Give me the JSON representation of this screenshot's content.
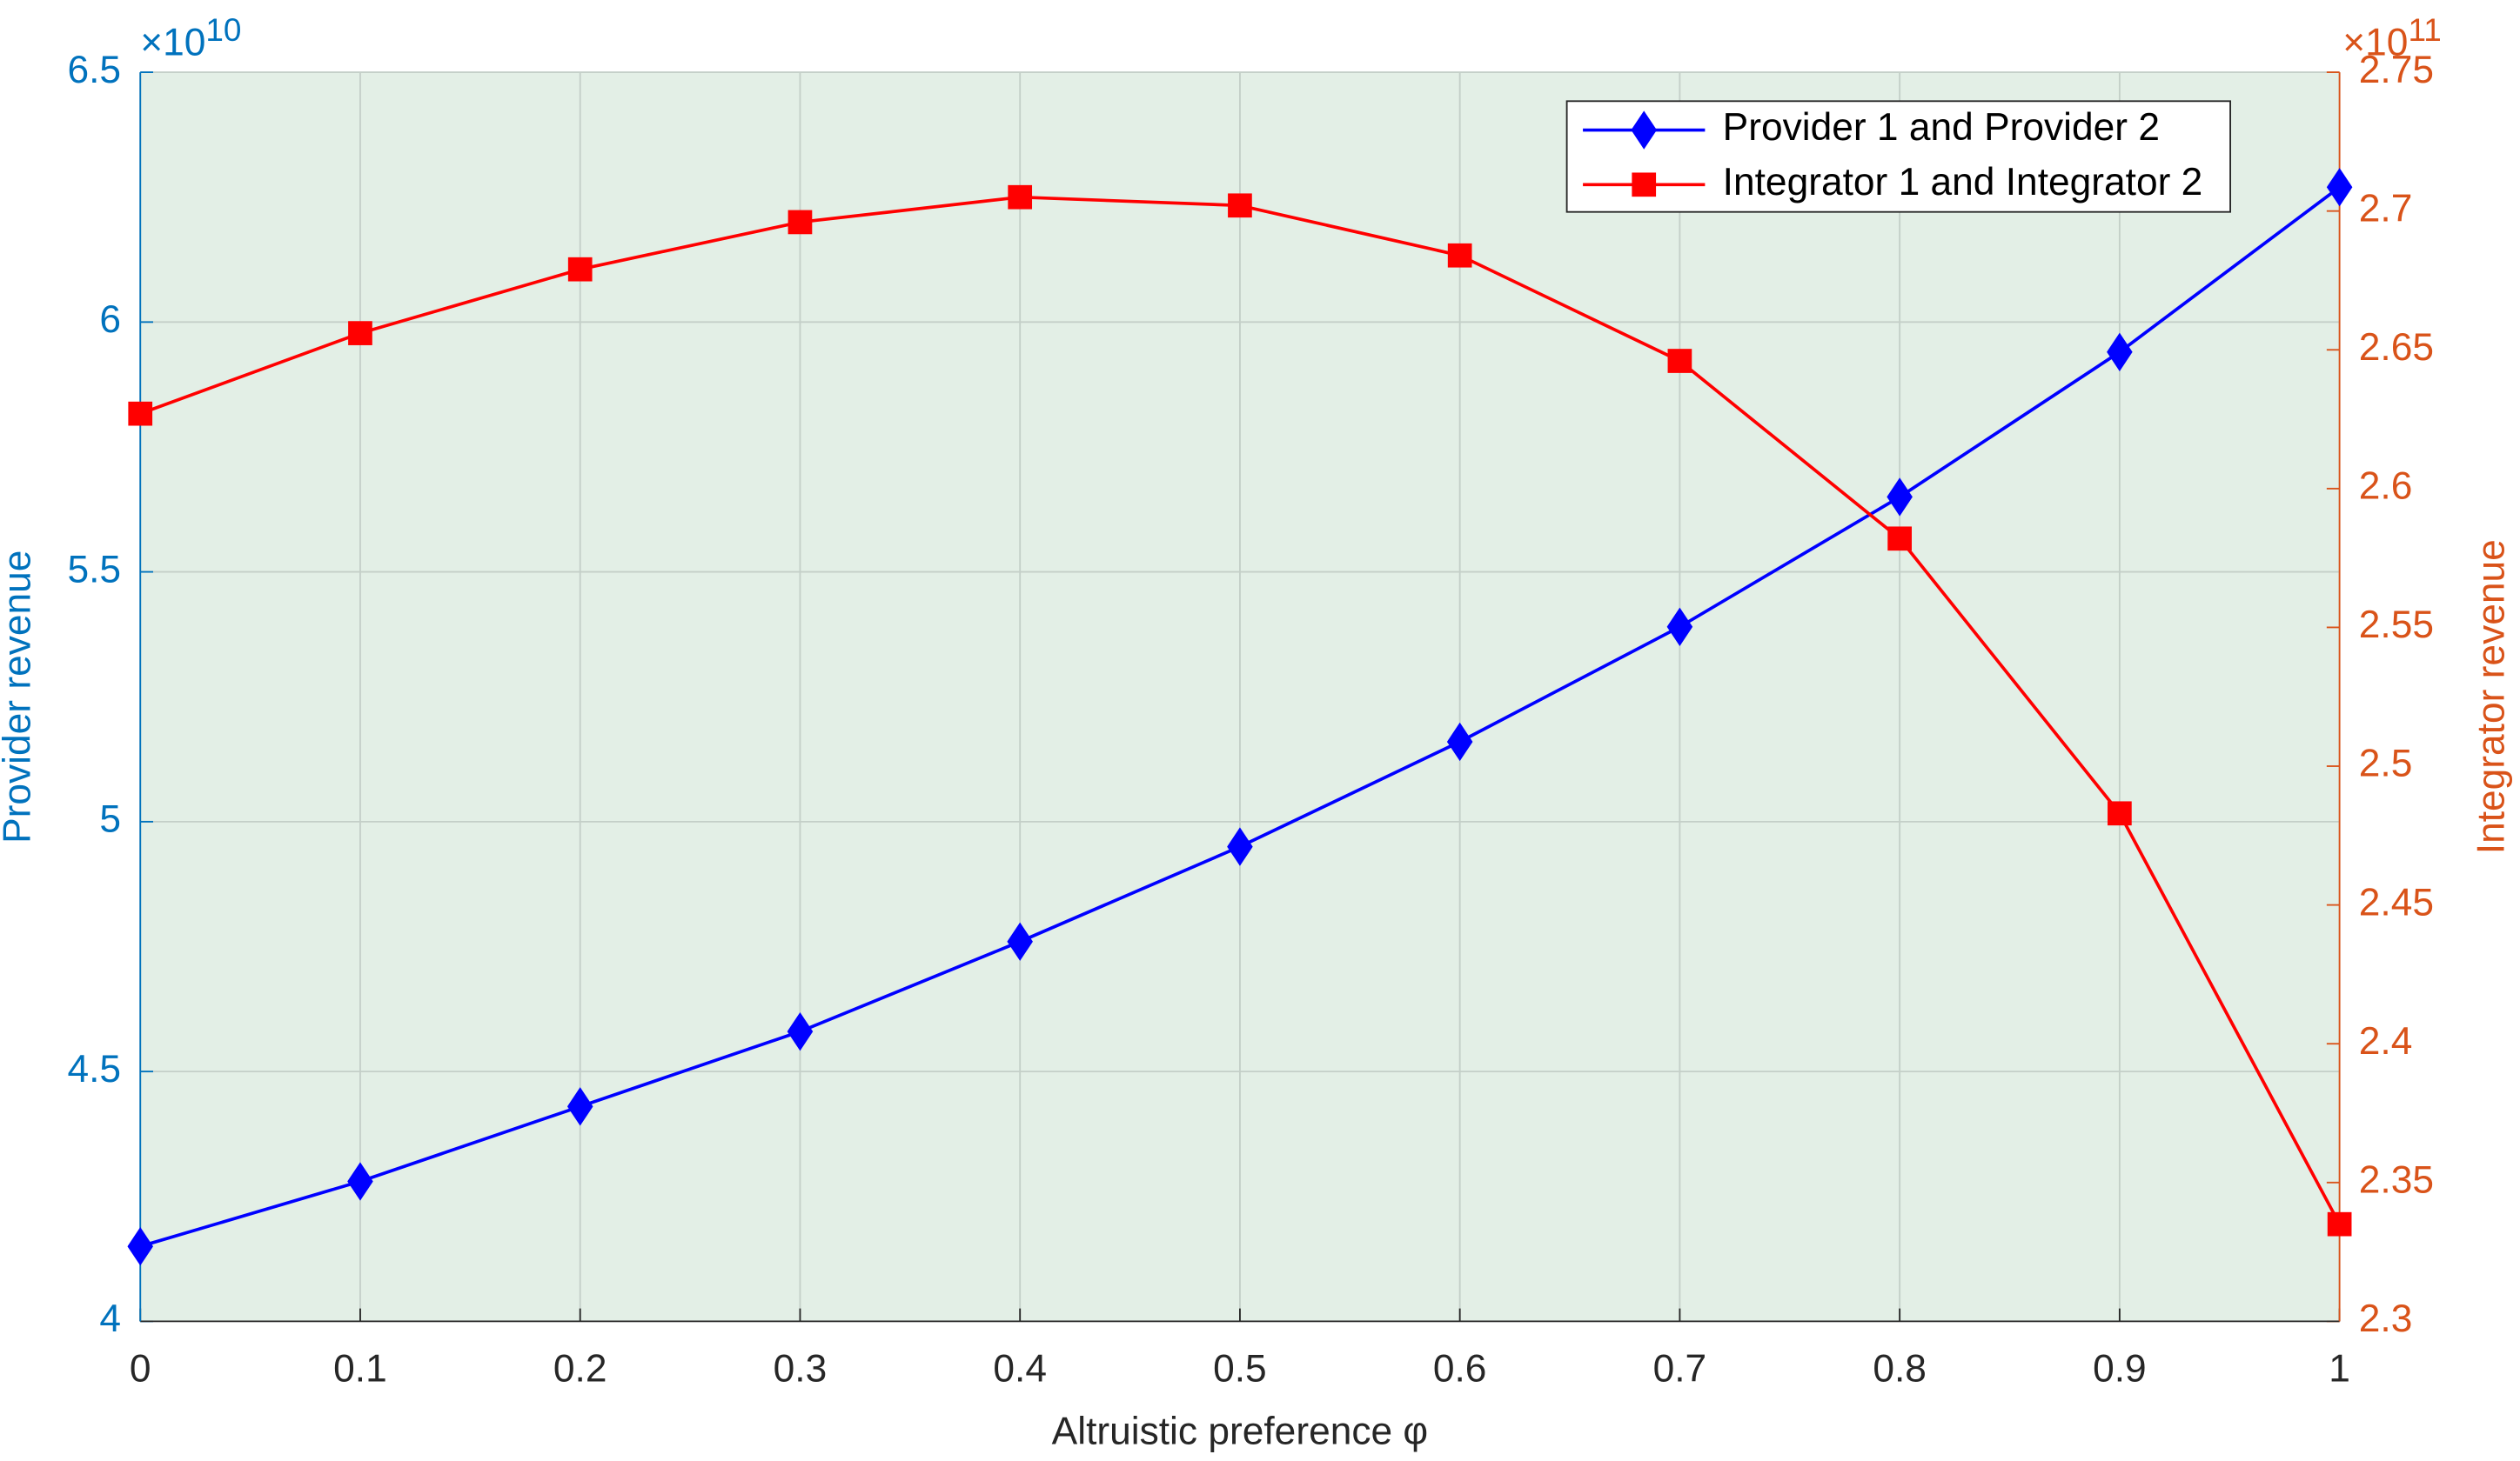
{
  "chart_data": {
    "type": "line",
    "x_label": "Altruistic preference φ",
    "y_label": "Provider revenue",
    "y2_label": "Integrator revenue",
    "y_exponent": {
      "base": "×10",
      "power": "10"
    },
    "y2_exponent": {
      "base": "×10",
      "power": "11"
    },
    "x": [
      0,
      0.1,
      0.2,
      0.3,
      0.4,
      0.5,
      0.6,
      0.7,
      0.8,
      0.9,
      1
    ],
    "xlim": [
      0,
      1
    ],
    "xticks": [
      0,
      0.1,
      0.2,
      0.3,
      0.4,
      0.5,
      0.6,
      0.7,
      0.8,
      0.9,
      1
    ],
    "ylim": [
      4,
      6.5
    ],
    "yticks": [
      4,
      4.5,
      5,
      5.5,
      6,
      6.5
    ],
    "y2lim": [
      2.3,
      2.75
    ],
    "y2ticks": [
      2.3,
      2.35,
      2.4,
      2.45,
      2.5,
      2.55,
      2.6,
      2.65,
      2.7,
      2.75
    ],
    "y_color": "#0072bd",
    "y2_color": "#d95319",
    "grid": true,
    "legend": "top-right",
    "series": [
      {
        "name": "Provider 1 and Provider 2",
        "color": "#0000ff",
        "marker": "diamond",
        "values": [
          4.15,
          4.28,
          4.43,
          4.58,
          4.76,
          4.95,
          5.16,
          5.39,
          5.65,
          5.94,
          6.27
        ]
      },
      {
        "name": "Integrator 1 and Integrator 2",
        "color": "#ff0000",
        "marker": "square",
        "axis": "y2",
        "values": [
          2.627,
          2.656,
          2.679,
          2.696,
          2.705,
          2.702,
          2.684,
          2.646,
          2.582,
          2.483,
          2.335
        ]
      }
    ]
  }
}
